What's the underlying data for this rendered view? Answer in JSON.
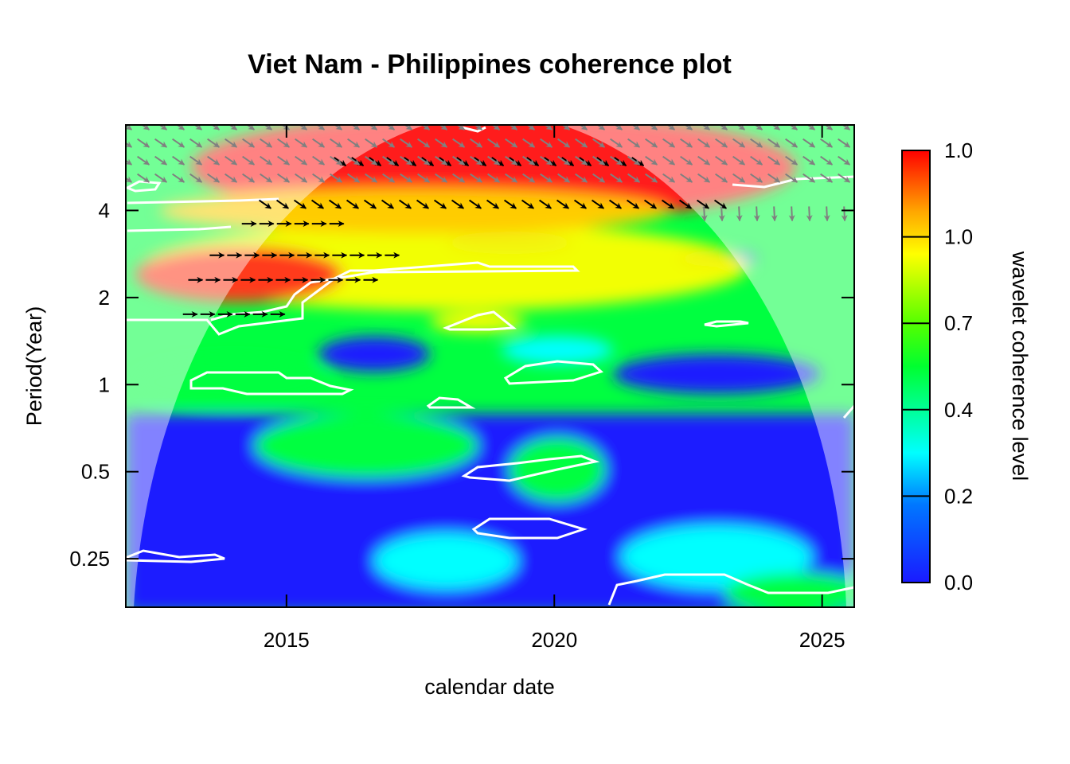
{
  "chart_data": {
    "type": "heatmap",
    "title": "Viet Nam - Philippines coherence plot",
    "xlabel": "calendar date",
    "ylabel": "Period(Year)",
    "x_ticks": [
      2015,
      2020,
      2025
    ],
    "x_tick_labels": [
      "2015",
      "2020",
      "2025"
    ],
    "xlim": [
      2012.0,
      2025.6
    ],
    "y_scale": "log2",
    "y_ticks": [
      0.25,
      0.5,
      1,
      2,
      4
    ],
    "y_tick_labels": [
      "0.25",
      "0.5",
      "1",
      "2",
      "4"
    ],
    "ylim": [
      0.17,
      7.9
    ],
    "colorbar": {
      "label": "wavelet coherence level",
      "tick_labels": [
        "0.0",
        "0.2",
        "0.4",
        "0.7",
        "1.0",
        "1.0"
      ],
      "colors": [
        "#1a1aff",
        "#00ffff",
        "#00ff00",
        "#ffff00",
        "#ff8c00",
        "#ff0000"
      ]
    },
    "cone_of_influence": {
      "center_x": 2018.4,
      "half_width_years": 6.3,
      "peak_period": 7.9,
      "shade_color": "#ffffff",
      "shade_opacity": 0.45
    },
    "coherence_regions": [
      {
        "level": "high",
        "color": "#ff1a1a",
        "x": [
          2013.0,
          2023.5
        ],
        "y": [
          2.6,
          7.9
        ]
      },
      {
        "level": "moderate",
        "color": "#ffff00",
        "x": [
          2013.0,
          2023.8
        ],
        "y": [
          1.6,
          3.6
        ]
      },
      {
        "level": "low",
        "color": "#1a1aff",
        "x": [
          2012.0,
          2025.6
        ],
        "y": [
          0.17,
          0.7
        ]
      },
      {
        "level": "medium",
        "color": "#00ff40",
        "x": [
          2012.0,
          2025.6
        ],
        "y": [
          0.7,
          1.6
        ]
      }
    ],
    "phase_arrows": [
      {
        "row_period": 5.9,
        "x": [
          2016.0,
          2021.6
        ],
        "direction": "down-right",
        "color": "#000000"
      },
      {
        "row_period": 4.2,
        "x": [
          2014.6,
          2023.2
        ],
        "direction": "down-right",
        "color": "#000000"
      },
      {
        "row_period": 3.6,
        "x": [
          2014.3,
          2016.1
        ],
        "direction": "right",
        "color": "#000000"
      },
      {
        "row_period": 2.8,
        "x": [
          2013.7,
          2017.2
        ],
        "direction": "right",
        "color": "#000000"
      },
      {
        "row_period": 2.3,
        "x": [
          2013.3,
          2016.6
        ],
        "direction": "right",
        "color": "#000000"
      },
      {
        "row_period": 1.75,
        "x": [
          2013.2,
          2015.0
        ],
        "direction": "right",
        "color": "#000000"
      },
      {
        "row_period": 6.5,
        "x": [
          2012.0,
          2025.6
        ],
        "direction": "down-right",
        "color": "#808080"
      },
      {
        "row_period": 3.9,
        "x": [
          2022.8,
          2025.6
        ],
        "direction": "down",
        "color": "#808080"
      }
    ]
  }
}
